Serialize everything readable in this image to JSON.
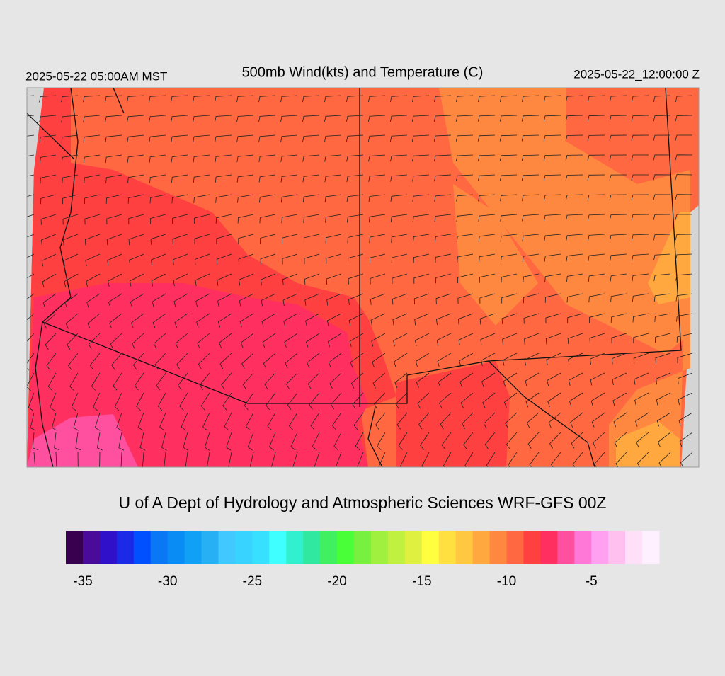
{
  "header": {
    "left": "2025-05-22 05:00AM MST",
    "title": "500mb Wind(kts) and Temperature (C)",
    "right": "2025-05-22_12:00:00 Z"
  },
  "footer": {
    "credit": "U of A Dept of Hydrology and Atmospheric Sciences WRF-GFS 00Z"
  },
  "colorbar": {
    "lim": [
      -36,
      -1
    ],
    "ticks": [
      -35,
      -30,
      -25,
      -20,
      -15,
      -10,
      -5
    ],
    "colors": [
      "#3a0050",
      "#4a0a9a",
      "#3010c8",
      "#1a2ae6",
      "#0050ff",
      "#0a78f5",
      "#0a8cf5",
      "#10a0f5",
      "#28b0f5",
      "#40c8ff",
      "#38d4ff",
      "#38e0ff",
      "#40ffff",
      "#30f0d0",
      "#30e8a0",
      "#40f060",
      "#48ff38",
      "#78f040",
      "#a0f040",
      "#c0f040",
      "#e0f040",
      "#ffff40",
      "#ffe040",
      "#ffc840",
      "#ffa840",
      "#ff8840",
      "#ff6840",
      "#ff4040",
      "#ff3060",
      "#ff50a0",
      "#ff78d8",
      "#ffa0f0",
      "#ffc0f0",
      "#ffe0f8",
      "#fff0ff"
    ]
  }
}
